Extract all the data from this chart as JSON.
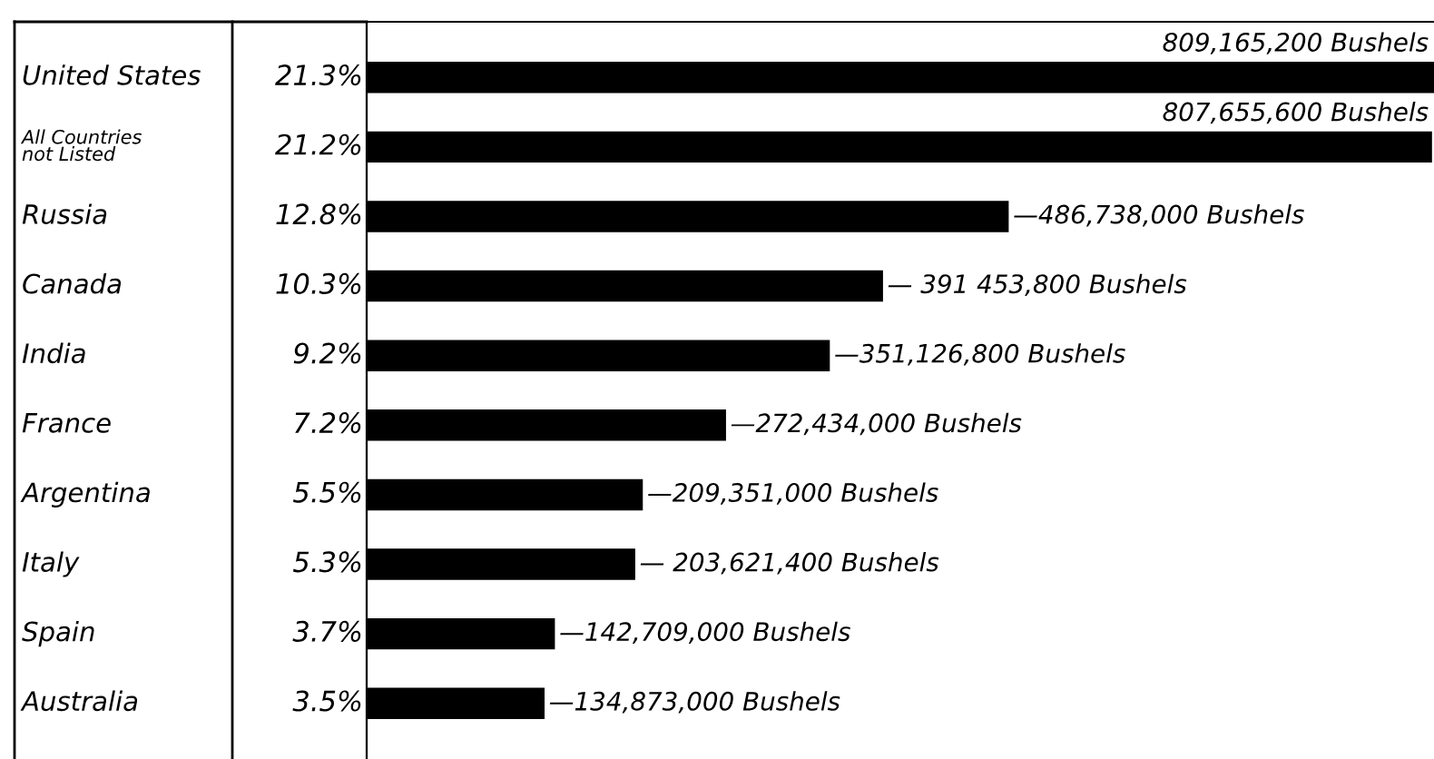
{
  "chart_data": {
    "type": "bar",
    "orientation": "horizontal",
    "categories": [
      "United States",
      "All Countries\nnot Listed",
      "Russia",
      "Canada",
      "India",
      "France",
      "Argentina",
      "Italy",
      "Spain",
      "Australia"
    ],
    "values": [
      809165200,
      807655600,
      486738000,
      391453800,
      351126800,
      272434000,
      209351000,
      203621400,
      142709000,
      134873000
    ],
    "color": "#000000",
    "value_labels": [
      "809,165,200 Bushels",
      "807,655,600 Bushels",
      "—486,738,000 Bushels",
      "— 391 453,800 Bushels",
      "—351,126,800 Bushels",
      "—272,434,000 Bushels",
      "—209,351,000 Bushels",
      "— 203,621,400 Bushels",
      "—142,709,000 Bushels",
      "—134,873,000 Bushels"
    ],
    "annotations": [
      "21.3%",
      "21.2%",
      "12.8%",
      "10.3%",
      "9.2%",
      "7.2%",
      "5.5%",
      "5.3%",
      "3.7%",
      "3.5%"
    ]
  }
}
